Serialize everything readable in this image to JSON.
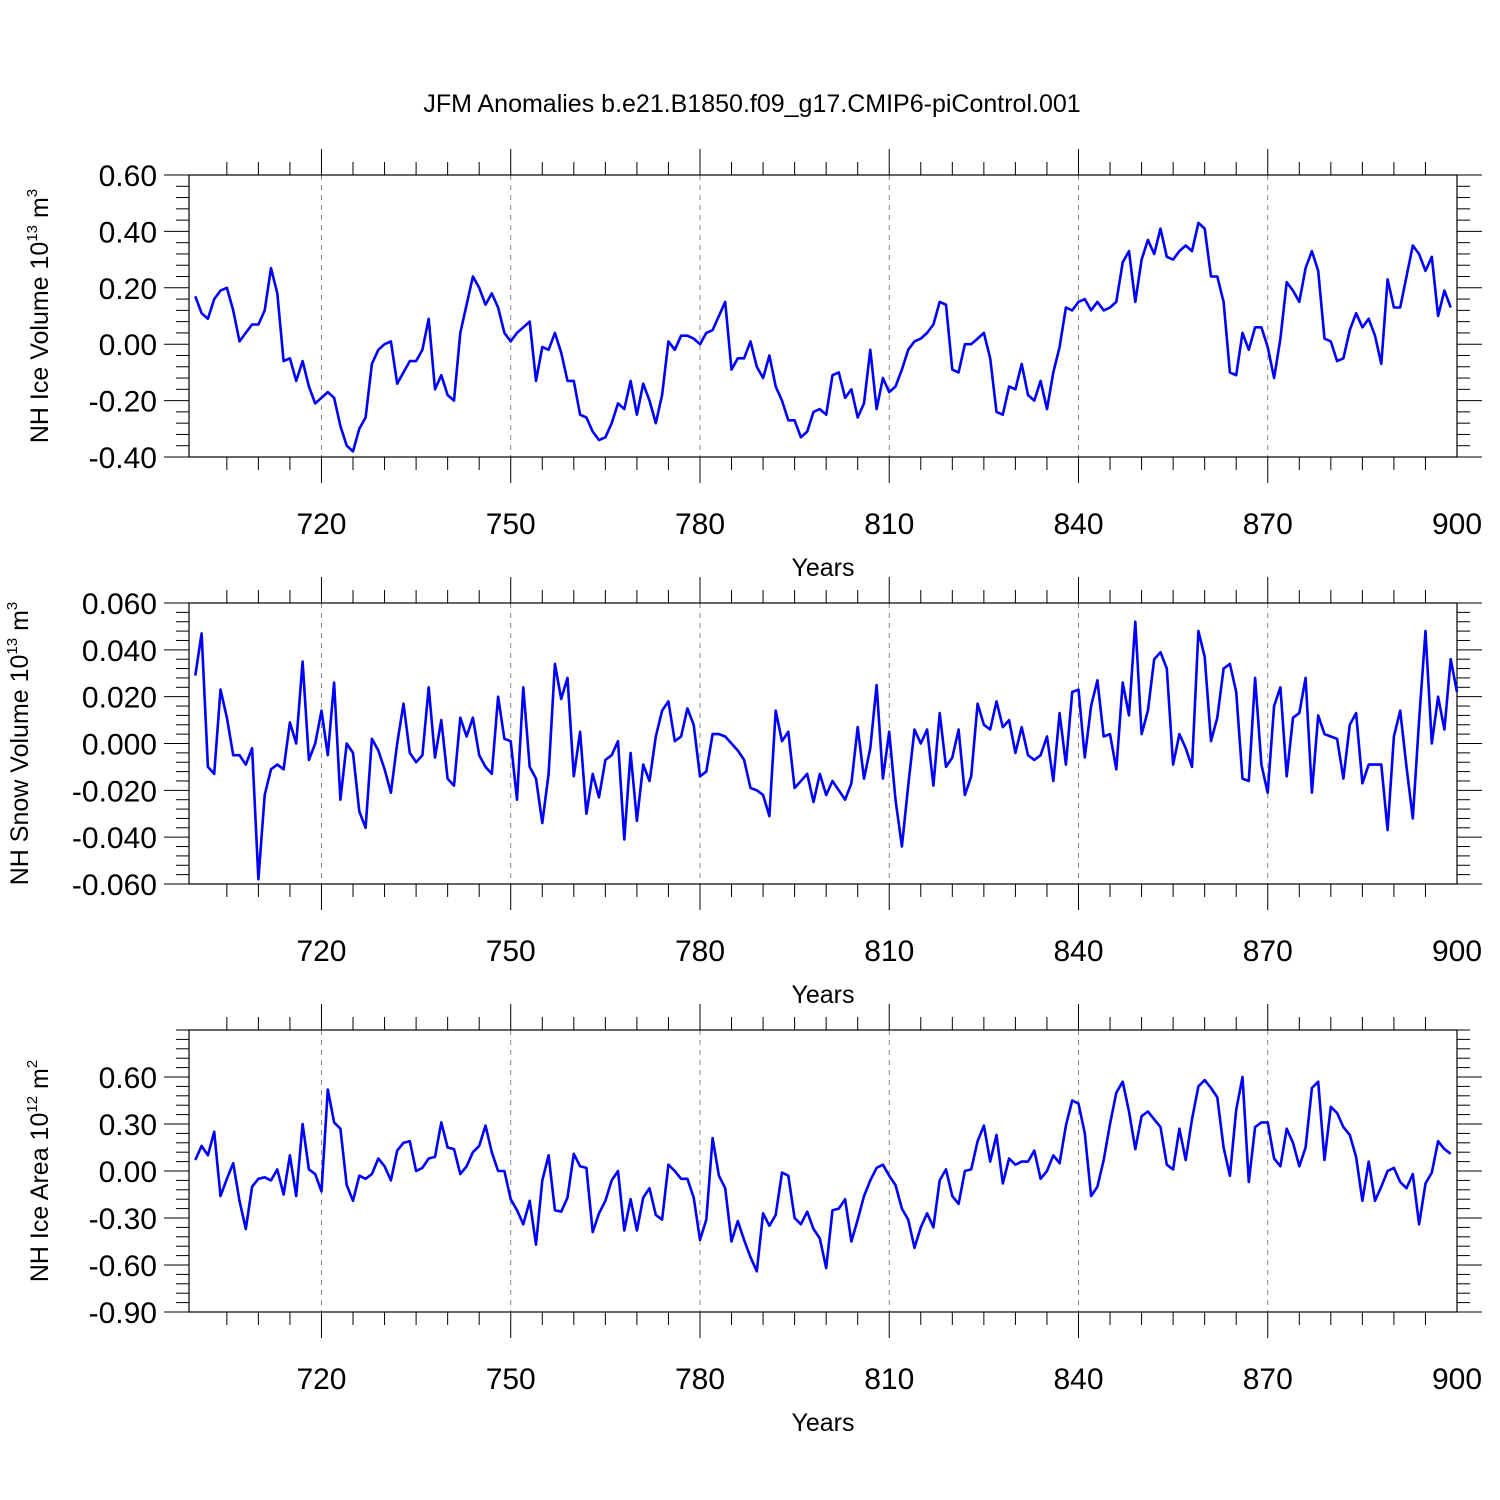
{
  "figure": {
    "title": "JFM Anomalies b.e21.B1850.f09_g17.CMIP6-piControl.001",
    "line_color": "#0000ff"
  },
  "chart_data": [
    {
      "type": "line",
      "xlabel": "Years",
      "ylabel": {
        "text": "NH Ice Volume 10",
        "exp1": "13",
        "mid": " m",
        "exp2": "3"
      },
      "xlim": [
        699,
        900
      ],
      "ylim": [
        -0.4,
        0.6
      ],
      "xticks": [
        720,
        750,
        780,
        810,
        840,
        870,
        900
      ],
      "yticks": [
        -0.4,
        -0.2,
        0.0,
        0.2,
        0.4,
        0.6
      ],
      "ytick_labels": [
        "-0.40",
        "-0.20",
        "0.00",
        "0.20",
        "0.40",
        "0.60"
      ],
      "minor_y_step": 0.04,
      "grid": "vertical dashed",
      "series": [
        {
          "x_start": 700,
          "x_step": 1,
          "values": [
            0.17,
            0.11,
            0.09,
            0.16,
            0.19,
            0.2,
            0.12,
            0.01,
            0.04,
            0.07,
            0.07,
            0.12,
            0.27,
            0.18,
            -0.06,
            -0.05,
            -0.13,
            -0.06,
            -0.15,
            -0.21,
            -0.19,
            -0.17,
            -0.19,
            -0.29,
            -0.36,
            -0.38,
            -0.3,
            -0.26,
            -0.07,
            -0.02,
            0.0,
            0.01,
            -0.14,
            -0.1,
            -0.06,
            -0.06,
            -0.02,
            0.09,
            -0.16,
            -0.11,
            -0.18,
            -0.2,
            0.04,
            0.14,
            0.24,
            0.2,
            0.14,
            0.18,
            0.13,
            0.04,
            0.01,
            0.04,
            0.06,
            0.08,
            -0.13,
            -0.01,
            -0.02,
            0.04,
            -0.03,
            -0.13,
            -0.13,
            -0.25,
            -0.26,
            -0.31,
            -0.34,
            -0.33,
            -0.28,
            -0.21,
            -0.23,
            -0.13,
            -0.25,
            -0.14,
            -0.2,
            -0.28,
            -0.18,
            0.01,
            -0.02,
            0.03,
            0.03,
            0.02,
            0.0,
            0.04,
            0.05,
            0.1,
            0.15,
            -0.09,
            -0.05,
            -0.05,
            0.01,
            -0.08,
            -0.12,
            -0.04,
            -0.15,
            -0.2,
            -0.27,
            -0.27,
            -0.33,
            -0.31,
            -0.24,
            -0.23,
            -0.25,
            -0.11,
            -0.1,
            -0.19,
            -0.16,
            -0.26,
            -0.21,
            -0.02,
            -0.23,
            -0.12,
            -0.17,
            -0.15,
            -0.09,
            -0.02,
            0.01,
            0.02,
            0.04,
            0.07,
            0.15,
            0.14,
            -0.09,
            -0.1,
            0.0,
            0.0,
            0.02,
            0.04,
            -0.05,
            -0.24,
            -0.25,
            -0.15,
            -0.16,
            -0.07,
            -0.18,
            -0.2,
            -0.13,
            -0.23,
            -0.1,
            -0.01,
            0.13,
            0.12,
            0.15,
            0.16,
            0.12,
            0.15,
            0.12,
            0.13,
            0.15,
            0.29,
            0.33,
            0.15,
            0.3,
            0.37,
            0.32,
            0.41,
            0.31,
            0.3,
            0.33,
            0.35,
            0.33,
            0.43,
            0.41,
            0.24,
            0.24,
            0.15,
            -0.1,
            -0.11,
            0.04,
            -0.02,
            0.06,
            0.06,
            -0.01,
            -0.12,
            0.02,
            0.22,
            0.19,
            0.15,
            0.27,
            0.33,
            0.26,
            0.02,
            0.01,
            -0.06,
            -0.05,
            0.05,
            0.11,
            0.06,
            0.09,
            0.03,
            -0.07,
            0.23,
            0.13,
            0.13,
            0.24,
            0.35,
            0.32,
            0.26,
            0.31,
            0.1,
            0.19,
            0.13
          ]
        }
      ]
    },
    {
      "type": "line",
      "xlabel": "Years",
      "ylabel": {
        "text": "NH Snow Volume 10",
        "exp1": "13",
        "mid": " m",
        "exp2": "3"
      },
      "xlim": [
        699,
        900
      ],
      "ylim": [
        -0.06,
        0.06
      ],
      "xticks": [
        720,
        750,
        780,
        810,
        840,
        870,
        900
      ],
      "yticks": [
        -0.06,
        -0.04,
        -0.02,
        0.0,
        0.02,
        0.04,
        0.06
      ],
      "ytick_labels": [
        "-0.060",
        "-0.040",
        "-0.020",
        "0.000",
        "0.020",
        "0.040",
        "0.060"
      ],
      "minor_y_step": 0.004,
      "grid": "vertical dashed",
      "series": [
        {
          "x_start": 700,
          "x_step": 1,
          "values": [
            0.029,
            0.047,
            -0.01,
            -0.013,
            0.023,
            0.011,
            -0.005,
            -0.005,
            -0.009,
            -0.002,
            -0.058,
            -0.022,
            -0.011,
            -0.009,
            -0.011,
            0.009,
            0.0,
            0.035,
            -0.007,
            0.0,
            0.014,
            -0.005,
            0.026,
            -0.024,
            0.0,
            -0.004,
            -0.029,
            -0.036,
            0.002,
            -0.003,
            -0.011,
            -0.021,
            0.0,
            0.017,
            -0.004,
            -0.008,
            -0.005,
            0.024,
            -0.006,
            0.01,
            -0.015,
            -0.018,
            0.011,
            0.003,
            0.011,
            -0.005,
            -0.01,
            -0.013,
            0.02,
            0.002,
            0.001,
            -0.024,
            0.024,
            -0.01,
            -0.015,
            -0.034,
            -0.013,
            0.034,
            0.019,
            0.028,
            -0.014,
            0.005,
            -0.03,
            -0.013,
            -0.023,
            -0.007,
            -0.005,
            0.001,
            -0.041,
            -0.004,
            -0.033,
            -0.009,
            -0.016,
            0.003,
            0.014,
            0.018,
            0.001,
            0.003,
            0.015,
            0.008,
            -0.014,
            -0.012,
            0.004,
            0.004,
            0.003,
            0.0,
            -0.003,
            -0.007,
            -0.019,
            -0.02,
            -0.022,
            -0.031,
            0.014,
            0.001,
            0.005,
            -0.019,
            -0.016,
            -0.013,
            -0.025,
            -0.013,
            -0.022,
            -0.016,
            -0.02,
            -0.024,
            -0.017,
            0.007,
            -0.015,
            -0.002,
            0.025,
            -0.015,
            0.005,
            -0.024,
            -0.044,
            -0.018,
            0.006,
            0.0,
            0.006,
            -0.018,
            0.013,
            -0.01,
            -0.006,
            0.006,
            -0.022,
            -0.014,
            0.017,
            0.008,
            0.006,
            0.018,
            0.007,
            0.01,
            -0.004,
            0.007,
            -0.005,
            -0.007,
            -0.005,
            0.003,
            -0.016,
            0.013,
            -0.009,
            0.022,
            0.023,
            -0.006,
            0.016,
            0.027,
            0.003,
            0.004,
            -0.011,
            0.026,
            0.012,
            0.052,
            0.004,
            0.014,
            0.036,
            0.039,
            0.032,
            -0.009,
            0.004,
            -0.002,
            -0.01,
            0.048,
            0.037,
            0.001,
            0.011,
            0.032,
            0.034,
            0.022,
            -0.015,
            -0.016,
            0.028,
            -0.009,
            -0.021,
            0.016,
            0.024,
            -0.014,
            0.011,
            0.013,
            0.028,
            -0.021,
            0.012,
            0.004,
            0.003,
            0.002,
            -0.015,
            0.008,
            0.013,
            -0.017,
            -0.009,
            -0.009,
            -0.009,
            -0.037,
            0.003,
            0.014,
            -0.01,
            -0.032,
            0.01,
            0.048,
            0.0,
            0.02,
            0.006,
            0.036,
            0.022
          ]
        }
      ]
    },
    {
      "type": "line",
      "xlabel": "Years",
      "ylabel": {
        "text": "NH Ice Area 10",
        "exp1": "12",
        "mid": " m",
        "exp2": "2"
      },
      "xlim": [
        699,
        900
      ],
      "ylim": [
        -0.9,
        0.9
      ],
      "xticks": [
        720,
        750,
        780,
        810,
        840,
        870,
        900
      ],
      "yticks": [
        -0.9,
        -0.6,
        -0.3,
        0.0,
        0.3,
        0.6
      ],
      "ytick_labels": [
        "-0.90",
        "-0.60",
        "-0.30",
        "0.00",
        "0.30",
        "0.60"
      ],
      "minor_y_step": 0.06,
      "grid": "vertical dashed",
      "series": [
        {
          "x_start": 700,
          "x_step": 1,
          "values": [
            0.07,
            0.16,
            0.1,
            0.25,
            -0.16,
            -0.05,
            0.05,
            -0.19,
            -0.37,
            -0.1,
            -0.05,
            -0.04,
            -0.06,
            0.01,
            -0.15,
            0.1,
            -0.16,
            0.3,
            0.01,
            -0.02,
            -0.13,
            0.52,
            0.31,
            0.27,
            -0.09,
            -0.19,
            -0.03,
            -0.05,
            -0.02,
            0.08,
            0.03,
            -0.06,
            0.13,
            0.18,
            0.19,
            0.0,
            0.02,
            0.08,
            0.09,
            0.31,
            0.15,
            0.14,
            -0.02,
            0.03,
            0.12,
            0.16,
            0.29,
            0.12,
            0.0,
            0.0,
            -0.18,
            -0.25,
            -0.34,
            -0.19,
            -0.47,
            -0.06,
            0.1,
            -0.25,
            -0.26,
            -0.17,
            0.11,
            0.03,
            0.02,
            -0.39,
            -0.27,
            -0.19,
            -0.06,
            0.0,
            -0.38,
            -0.18,
            -0.38,
            -0.17,
            -0.11,
            -0.28,
            -0.31,
            0.04,
            0.0,
            -0.05,
            -0.05,
            -0.17,
            -0.44,
            -0.31,
            0.21,
            -0.03,
            -0.11,
            -0.45,
            -0.32,
            -0.44,
            -0.55,
            -0.64,
            -0.27,
            -0.35,
            -0.28,
            -0.01,
            -0.03,
            -0.3,
            -0.34,
            -0.26,
            -0.37,
            -0.43,
            -0.62,
            -0.25,
            -0.24,
            -0.18,
            -0.45,
            -0.31,
            -0.16,
            -0.06,
            0.02,
            0.04,
            -0.03,
            -0.09,
            -0.24,
            -0.31,
            -0.49,
            -0.36,
            -0.27,
            -0.36,
            -0.06,
            0.01,
            -0.16,
            -0.21,
            0.0,
            0.01,
            0.19,
            0.29,
            0.06,
            0.23,
            -0.08,
            0.08,
            0.04,
            0.06,
            0.06,
            0.13,
            -0.05,
            0.0,
            0.1,
            0.05,
            0.29,
            0.45,
            0.43,
            0.24,
            -0.16,
            -0.1,
            0.07,
            0.3,
            0.5,
            0.57,
            0.38,
            0.14,
            0.35,
            0.38,
            0.33,
            0.28,
            0.04,
            0.01,
            0.27,
            0.07,
            0.33,
            0.54,
            0.58,
            0.53,
            0.47,
            0.15,
            -0.03,
            0.39,
            0.6,
            -0.07,
            0.28,
            0.31,
            0.31,
            0.08,
            0.03,
            0.27,
            0.18,
            0.03,
            0.15,
            0.53,
            0.57,
            0.07,
            0.41,
            0.37,
            0.28,
            0.23,
            0.09,
            -0.19,
            0.06,
            -0.19,
            -0.1,
            0.0,
            0.02,
            -0.07,
            -0.11,
            -0.02,
            -0.34,
            -0.08,
            -0.01,
            0.19,
            0.14,
            0.11
          ]
        }
      ]
    }
  ]
}
